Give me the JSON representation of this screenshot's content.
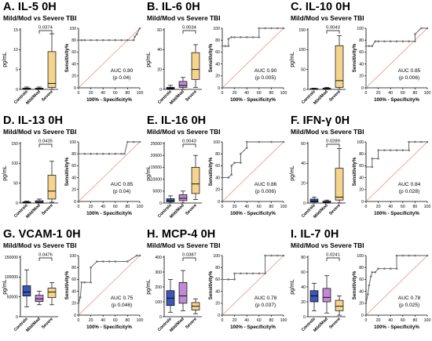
{
  "figure": {
    "panels": [
      {
        "title": "A. IL-5 0H",
        "subtitle": "Mild/Mod vs Severe TBI"
      },
      {
        "title": "B. IL-6 0H",
        "subtitle": "Mild/Mod vs Severe TBI"
      },
      {
        "title": "C. IL-10 0H",
        "subtitle": "Mild/Mod vs Severe TBI"
      },
      {
        "title": "D. IL-13 0H",
        "subtitle": "Mild/Mod vs Severe TBI"
      },
      {
        "title": "E. IL-16 0H",
        "subtitle": "Mild/Mod vs Severe TBI"
      },
      {
        "title": "F. IFN-γ 0H",
        "subtitle": "Mild/Mod vs Severe TBI"
      },
      {
        "title": "G. VCAM-1 0H",
        "subtitle": "Mild/Mod vs Severe TBI"
      },
      {
        "title": "H. MCP-4 0H",
        "subtitle": "Mild/Mod vs Severe TBI"
      },
      {
        "title": "I. IL-7 0H",
        "subtitle": "Mild/Mod vs Severe TBI"
      }
    ]
  },
  "chart_data": [
    {
      "type": "box",
      "ylabel": "pg/mL",
      "categories": [
        "Controls",
        "Mild/Mod",
        "Severe"
      ],
      "ylim": [
        0,
        15
      ],
      "yticks": [
        "0",
        "5",
        "10",
        "15"
      ],
      "significance": {
        "between": [
          "Mild/Mod",
          "Severe"
        ],
        "p": "0.0374"
      },
      "boxes": [
        {
          "min": 0,
          "q1": 0.1,
          "median": 0.2,
          "q3": 0.3,
          "max": 0.6
        },
        {
          "min": 0,
          "q1": 0.1,
          "median": 0.2,
          "q3": 0.3,
          "max": 0.6
        },
        {
          "min": 0,
          "q1": 0.5,
          "median": 1.5,
          "q3": 9.5,
          "max": 14
        }
      ],
      "colors": [
        "#3b57b7",
        "#c18ad6",
        "#f5d48f"
      ]
    },
    {
      "type": "line",
      "subtype": "roc",
      "xlabel": "100% - Specificity%",
      "ylabel": "Sensitivity%",
      "xlim": [
        0,
        100
      ],
      "ylim": [
        0,
        100
      ],
      "xticks": [
        "0",
        "20",
        "40",
        "60",
        "80",
        "100"
      ],
      "yticks": [
        "0",
        "20",
        "40",
        "60",
        "80",
        "100"
      ],
      "x": [
        0,
        0,
        5,
        10,
        20,
        30,
        40,
        50,
        60,
        70,
        80,
        90,
        92,
        95,
        100
      ],
      "y": [
        0,
        80,
        80,
        80,
        80,
        80,
        80,
        80,
        80,
        80,
        80,
        80,
        86,
        90,
        100
      ],
      "annotation": "AUC 0.80",
      "p_value": "(p 0.04)"
    },
    {
      "type": "box",
      "ylabel": "pg/mL",
      "categories": [
        "Controls",
        "Mild/Mod",
        "Severe"
      ],
      "ylim": [
        0,
        60
      ],
      "yticks": [
        "0",
        "20",
        "40",
        "60"
      ],
      "significance": {
        "between": [
          "Mild/Mod",
          "Severe"
        ],
        "p": "0.0034"
      },
      "boxes": [
        {
          "min": 0,
          "q1": 0.5,
          "median": 1,
          "q3": 2,
          "max": 4
        },
        {
          "min": 0,
          "q1": 2,
          "median": 4,
          "q3": 8,
          "max": 12
        },
        {
          "min": 2,
          "q1": 10,
          "median": 20,
          "q3": 37,
          "max": 45
        }
      ],
      "colors": [
        "#3b57b7",
        "#c18ad6",
        "#f5d48f"
      ]
    },
    {
      "type": "line",
      "subtype": "roc",
      "xlabel": "100% - Specificity%",
      "ylabel": "Sensitivity%",
      "xlim": [
        0,
        100
      ],
      "ylim": [
        0,
        100
      ],
      "xticks": [
        "0",
        "20",
        "40",
        "60",
        "80",
        "100"
      ],
      "yticks": [
        "0",
        "20",
        "40",
        "60",
        "80",
        "100"
      ],
      "x": [
        0,
        0,
        5,
        10,
        10,
        15,
        20,
        30,
        40,
        50,
        60,
        60,
        70,
        80,
        90,
        100
      ],
      "y": [
        0,
        70,
        70,
        70,
        82,
        85,
        85,
        85,
        85,
        85,
        85,
        100,
        100,
        100,
        100,
        100
      ],
      "annotation": "AUC 0.90",
      "p_value": "(p 0.005)"
    },
    {
      "type": "box",
      "ylabel": "pg/mL",
      "categories": [
        "Controls",
        "Mild/Mod",
        "Severe"
      ],
      "ylim": [
        0,
        150
      ],
      "yticks": [
        "0",
        "50",
        "100",
        "150"
      ],
      "significance": {
        "between": [
          "Mild/Mod",
          "Severe"
        ],
        "p": "0.0043"
      },
      "boxes": [
        {
          "min": 0,
          "q1": 0.5,
          "median": 1,
          "q3": 2,
          "max": 3
        },
        {
          "min": 0,
          "q1": 1,
          "median": 2,
          "q3": 3,
          "max": 5
        },
        {
          "min": 0,
          "q1": 5,
          "median": 22,
          "q3": 110,
          "max": 135
        }
      ],
      "colors": [
        "#3b57b7",
        "#c18ad6",
        "#f5d48f"
      ]
    },
    {
      "type": "line",
      "subtype": "roc",
      "xlabel": "100% - Specificity%",
      "ylabel": "Sensitivity%",
      "xlim": [
        0,
        100
      ],
      "ylim": [
        0,
        100
      ],
      "xticks": [
        "0",
        "20",
        "40",
        "60",
        "80",
        "100"
      ],
      "yticks": [
        "0",
        "20",
        "40",
        "60",
        "80",
        "100"
      ],
      "x": [
        0,
        0,
        5,
        10,
        15,
        20,
        30,
        40,
        50,
        60,
        70,
        80,
        80,
        90,
        100
      ],
      "y": [
        0,
        70,
        70,
        70,
        78,
        78,
        78,
        78,
        78,
        78,
        78,
        78,
        90,
        100,
        100
      ],
      "annotation": "AUC 0.85",
      "p_value": "(p 0.006)"
    },
    {
      "type": "box",
      "ylabel": "pg/mL",
      "categories": [
        "Controls",
        "Mild/Mod",
        "Severe"
      ],
      "ylim": [
        0,
        150
      ],
      "yticks": [
        "0",
        "50",
        "100",
        "150"
      ],
      "significance": {
        "between": [
          "Mild/Mod",
          "Severe"
        ],
        "p": "0.0435"
      },
      "boxes": [
        {
          "min": 0,
          "q1": 0.5,
          "median": 1,
          "q3": 3,
          "max": 5
        },
        {
          "min": 0,
          "q1": 1,
          "median": 3,
          "q3": 6,
          "max": 10
        },
        {
          "min": 2,
          "q1": 10,
          "median": 30,
          "q3": 70,
          "max": 105
        }
      ],
      "colors": [
        "#3b57b7",
        "#c18ad6",
        "#f5d48f"
      ]
    },
    {
      "type": "line",
      "subtype": "roc",
      "xlabel": "100% - Specificity%",
      "ylabel": "Sensitivity%",
      "xlim": [
        0,
        100
      ],
      "ylim": [
        0,
        100
      ],
      "xticks": [
        "0",
        "20",
        "40",
        "60",
        "80",
        "100"
      ],
      "yticks": [
        "0",
        "20",
        "40",
        "60",
        "80",
        "100"
      ],
      "x": [
        0,
        0,
        10,
        20,
        30,
        40,
        50,
        60,
        70,
        75,
        80,
        90,
        100
      ],
      "y": [
        0,
        80,
        80,
        80,
        80,
        80,
        80,
        80,
        80,
        80,
        100,
        100,
        100
      ],
      "annotation": "AUC 0.85",
      "p_value": "(p 0.04)"
    },
    {
      "type": "box",
      "ylabel": "pg/mL",
      "categories": [
        "Controls",
        "Mild/Mod",
        "Severe"
      ],
      "ylim": [
        0,
        25000
      ],
      "yticks": [
        "0",
        "5000",
        "10000",
        "15000",
        "20000",
        "25000"
      ],
      "significance": {
        "between": [
          "Mild/Mod",
          "Severe"
        ],
        "p": "0.0043"
      },
      "boxes": [
        {
          "min": 0,
          "q1": 500,
          "median": 1000,
          "q3": 1800,
          "max": 3000
        },
        {
          "min": 0,
          "q1": 1000,
          "median": 2000,
          "q3": 3500,
          "max": 5000
        },
        {
          "min": 1500,
          "q1": 4000,
          "median": 8000,
          "q3": 15000,
          "max": 20000
        }
      ],
      "colors": [
        "#3b57b7",
        "#c18ad6",
        "#f5d48f"
      ]
    },
    {
      "type": "line",
      "subtype": "roc",
      "xlabel": "100% - Specificity%",
      "ylabel": "Sensitivity%",
      "xlim": [
        0,
        100
      ],
      "ylim": [
        0,
        100
      ],
      "xticks": [
        "0",
        "20",
        "40",
        "60",
        "80",
        "100"
      ],
      "yticks": [
        "0",
        "20",
        "40",
        "60",
        "80",
        "100"
      ],
      "x": [
        0,
        0,
        10,
        15,
        15,
        20,
        30,
        30,
        40,
        40,
        60,
        80,
        100
      ],
      "y": [
        0,
        40,
        40,
        45,
        60,
        65,
        65,
        80,
        90,
        100,
        100,
        100,
        100
      ],
      "annotation": "AUC 0.86",
      "p_value": "(p 0.006)"
    },
    {
      "type": "box",
      "ylabel": "pg/mL",
      "categories": [
        "Controls",
        "Mild/Mod",
        "Severe"
      ],
      "ylim": [
        0,
        60
      ],
      "yticks": [
        "0",
        "20",
        "40",
        "60"
      ],
      "significance": {
        "between": [
          "Mild/Mod",
          "Severe"
        ],
        "p": "0.0289"
      },
      "boxes": [
        {
          "min": 0,
          "q1": 1,
          "median": 2,
          "q3": 4,
          "max": 6
        },
        {
          "min": 0,
          "q1": 0.5,
          "median": 1,
          "q3": 2,
          "max": 3
        },
        {
          "min": 0,
          "q1": 3,
          "median": 6,
          "q3": 35,
          "max": 55
        }
      ],
      "colors": [
        "#3b57b7",
        "#c18ad6",
        "#f5d48f"
      ]
    },
    {
      "type": "line",
      "subtype": "roc",
      "xlabel": "100% - Specificity%",
      "ylabel": "Sensitivity%",
      "xlim": [
        0,
        100
      ],
      "ylim": [
        0,
        100
      ],
      "xticks": [
        "0",
        "20",
        "40",
        "60",
        "80",
        "100"
      ],
      "yticks": [
        "0",
        "20",
        "40",
        "60",
        "80",
        "100"
      ],
      "x": [
        0,
        0,
        10,
        10,
        20,
        20,
        30,
        40,
        50,
        60,
        70,
        70,
        80,
        90,
        100
      ],
      "y": [
        0,
        58,
        58,
        72,
        72,
        86,
        86,
        86,
        86,
        86,
        86,
        100,
        100,
        100,
        100
      ],
      "annotation": "AUC 0.84",
      "p_value": "(p 0.028)"
    },
    {
      "type": "box",
      "ylabel": "pg/mL",
      "categories": [
        "Controls",
        "Mild/Mod",
        "Severe"
      ],
      "ylim": [
        0,
        150000
      ],
      "yticks": [
        "0",
        "50000",
        "100000",
        "150000"
      ],
      "significance": {
        "between": [
          "Mild/Mod",
          "Severe"
        ],
        "p": "0.0476"
      },
      "boxes": [
        {
          "min": 25000,
          "q1": 52000,
          "median": 62000,
          "q3": 78000,
          "max": 118000
        },
        {
          "min": 30000,
          "q1": 38000,
          "median": 45000,
          "q3": 54000,
          "max": 64000
        },
        {
          "min": 30000,
          "q1": 48000,
          "median": 62000,
          "q3": 72000,
          "max": 86000
        }
      ],
      "colors": [
        "#3b57b7",
        "#c18ad6",
        "#f5d48f"
      ]
    },
    {
      "type": "line",
      "subtype": "roc",
      "xlabel": "100% - Specificity%",
      "ylabel": "Sensitivity%",
      "xlim": [
        0,
        100
      ],
      "ylim": [
        0,
        100
      ],
      "xticks": [
        "0",
        "20",
        "40",
        "60",
        "80",
        "100"
      ],
      "yticks": [
        "0",
        "20",
        "40",
        "60",
        "80",
        "100"
      ],
      "x": [
        0,
        0,
        3,
        5,
        10,
        20,
        20,
        30,
        40,
        50,
        60,
        80,
        95,
        100
      ],
      "y": [
        0,
        20,
        30,
        55,
        55,
        55,
        80,
        90,
        90,
        90,
        90,
        90,
        100,
        100
      ],
      "annotation": "AUC 0.75",
      "p_value": "(p 0.046)"
    },
    {
      "type": "box",
      "ylabel": "pg/mL",
      "categories": [
        "Controls",
        "Mild/Mod",
        "Severe"
      ],
      "ylim": [
        0,
        400
      ],
      "yticks": [
        "0",
        "100",
        "200",
        "300",
        "400"
      ],
      "significance": {
        "between": [
          "Mild/Mod",
          "Severe"
        ],
        "p": "0.0387"
      },
      "boxes": [
        {
          "min": 30,
          "q1": 75,
          "median": 125,
          "q3": 175,
          "max": 250
        },
        {
          "min": 40,
          "q1": 90,
          "median": 140,
          "q3": 230,
          "max": 310
        },
        {
          "min": 20,
          "q1": 45,
          "median": 70,
          "q3": 95,
          "max": 120
        }
      ],
      "colors": [
        "#3b57b7",
        "#c18ad6",
        "#f5d48f"
      ]
    },
    {
      "type": "line",
      "subtype": "roc",
      "xlabel": "100% - Specificity%",
      "ylabel": "Sensitivity%",
      "xlim": [
        0,
        100
      ],
      "ylim": [
        0,
        100
      ],
      "xticks": [
        "0",
        "20",
        "40",
        "60",
        "80",
        "100"
      ],
      "yticks": [
        "0",
        "20",
        "40",
        "60",
        "80",
        "100"
      ],
      "x": [
        0,
        0,
        10,
        20,
        20,
        30,
        40,
        50,
        60,
        70,
        70,
        80,
        90,
        100
      ],
      "y": [
        0,
        60,
        60,
        60,
        70,
        70,
        70,
        70,
        70,
        70,
        100,
        100,
        100,
        100
      ],
      "annotation": "AUC 0.78",
      "p_value": "(p 0.037)"
    },
    {
      "type": "box",
      "ylabel": "pg/mL",
      "categories": [
        "Controls",
        "Mild/Mod",
        "Severe"
      ],
      "ylim": [
        0,
        80
      ],
      "yticks": [
        "0",
        "20",
        "40",
        "60",
        "80"
      ],
      "significance": {
        "between": [
          "Mild/Mod",
          "Severe"
        ],
        "p": "0.0241"
      },
      "boxes": [
        {
          "min": 8,
          "q1": 20,
          "median": 28,
          "q3": 35,
          "max": 45
        },
        {
          "min": 5,
          "q1": 20,
          "median": 26,
          "q3": 38,
          "max": 55
        },
        {
          "min": 2,
          "q1": 8,
          "median": 14,
          "q3": 22,
          "max": 28
        }
      ],
      "colors": [
        "#3b57b7",
        "#c18ad6",
        "#f5d48f"
      ]
    },
    {
      "type": "line",
      "subtype": "roc",
      "xlabel": "100% - Specificity%",
      "ylabel": "Sensitivity%",
      "xlim": [
        0,
        100
      ],
      "ylim": [
        0,
        100
      ],
      "xticks": [
        "0",
        "20",
        "40",
        "60",
        "80",
        "100"
      ],
      "yticks": [
        "0",
        "20",
        "40",
        "60",
        "80",
        "100"
      ],
      "x": [
        0,
        0,
        3,
        5,
        8,
        10,
        15,
        20,
        30,
        40,
        50,
        50,
        60,
        70,
        80,
        100
      ],
      "y": [
        0,
        20,
        35,
        50,
        65,
        72,
        72,
        78,
        78,
        78,
        78,
        100,
        100,
        100,
        100,
        100
      ],
      "annotation": "AUC 0.78",
      "p_value": "(p 0.025)"
    }
  ]
}
